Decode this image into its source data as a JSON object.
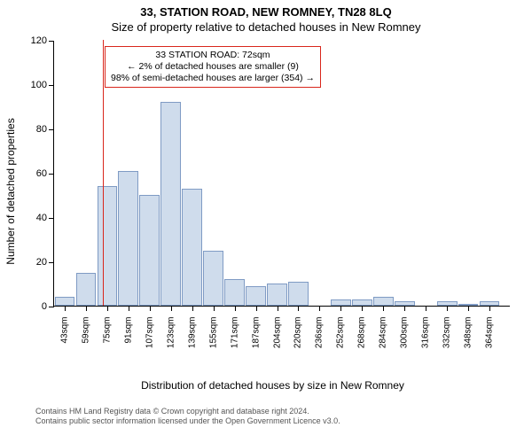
{
  "title_main": "33, STATION ROAD, NEW ROMNEY, TN28 8LQ",
  "title_sub": "Size of property relative to detached houses in New Romney",
  "chart": {
    "type": "histogram",
    "ylabel": "Number of detached properties",
    "xlabel": "Distribution of detached houses by size in New Romney",
    "ylim": [
      0,
      120
    ],
    "ytick_step": 20,
    "bar_color": "#cfdcec",
    "bar_border": "#7f9bc4",
    "background": "#ffffff",
    "axis_color": "#000000",
    "tick_font_size": 11,
    "label_font_size": 12,
    "marker_line_color": "#d9261c",
    "marker_x": 72,
    "categories": [
      "43sqm",
      "59sqm",
      "75sqm",
      "91sqm",
      "107sqm",
      "123sqm",
      "139sqm",
      "155sqm",
      "171sqm",
      "187sqm",
      "204sqm",
      "220sqm",
      "236sqm",
      "252sqm",
      "268sqm",
      "284sqm",
      "300sqm",
      "316sqm",
      "332sqm",
      "348sqm",
      "364sqm"
    ],
    "values": [
      4,
      15,
      54,
      61,
      50,
      92,
      53,
      25,
      12,
      9,
      10,
      11,
      0,
      3,
      3,
      4,
      2,
      0,
      2,
      1,
      2
    ],
    "x_start": 43,
    "x_step": 16
  },
  "annotation": {
    "lines": [
      "33 STATION ROAD: 72sqm",
      "← 2% of detached houses are smaller (9)",
      "98% of semi-detached houses are larger (354) →"
    ],
    "border_color": "#d9261c"
  },
  "footer": {
    "line1": "Contains HM Land Registry data © Crown copyright and database right 2024.",
    "line2": "Contains public sector information licensed under the Open Government Licence v3.0."
  }
}
